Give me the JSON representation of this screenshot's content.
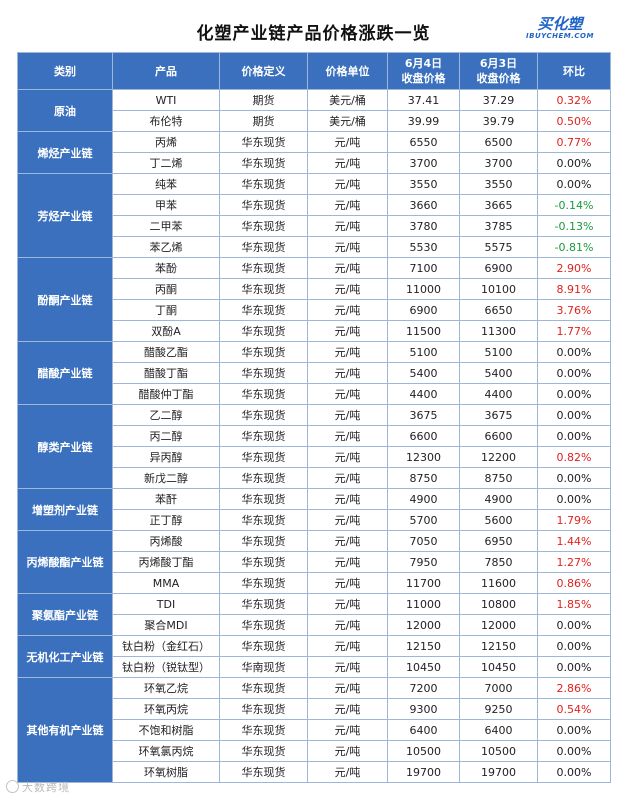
{
  "header": {
    "title": "化塑产业链产品价格涨跌一览",
    "logo_cn": "买化塑",
    "logo_en": "IBUYCHEM.COM"
  },
  "table": {
    "columns": [
      "类别",
      "产品",
      "价格定义",
      "价格单位",
      "6月4日\n收盘价格",
      "6月3日\n收盘价格",
      "环比"
    ],
    "groups": [
      {
        "category": "原油",
        "rows": [
          {
            "product": "WTI",
            "definition": "期货",
            "unit": "美元/桶",
            "d1": "37.41",
            "d2": "37.29",
            "change": "0.32%",
            "trend": "up"
          },
          {
            "product": "布伦特",
            "definition": "期货",
            "unit": "美元/桶",
            "d1": "39.99",
            "d2": "39.79",
            "change": "0.50%",
            "trend": "up"
          }
        ]
      },
      {
        "category": "烯烃产业链",
        "rows": [
          {
            "product": "丙烯",
            "definition": "华东现货",
            "unit": "元/吨",
            "d1": "6550",
            "d2": "6500",
            "change": "0.77%",
            "trend": "up"
          },
          {
            "product": "丁二烯",
            "definition": "华东现货",
            "unit": "元/吨",
            "d1": "3700",
            "d2": "3700",
            "change": "0.00%",
            "trend": "flat"
          }
        ]
      },
      {
        "category": "芳烃产业链",
        "rows": [
          {
            "product": "纯苯",
            "definition": "华东现货",
            "unit": "元/吨",
            "d1": "3550",
            "d2": "3550",
            "change": "0.00%",
            "trend": "flat"
          },
          {
            "product": "甲苯",
            "definition": "华东现货",
            "unit": "元/吨",
            "d1": "3660",
            "d2": "3665",
            "change": "-0.14%",
            "trend": "down"
          },
          {
            "product": "二甲苯",
            "definition": "华东现货",
            "unit": "元/吨",
            "d1": "3780",
            "d2": "3785",
            "change": "-0.13%",
            "trend": "down"
          },
          {
            "product": "苯乙烯",
            "definition": "华东现货",
            "unit": "元/吨",
            "d1": "5530",
            "d2": "5575",
            "change": "-0.81%",
            "trend": "down"
          }
        ]
      },
      {
        "category": "酚酮产业链",
        "rows": [
          {
            "product": "苯酚",
            "definition": "华东现货",
            "unit": "元/吨",
            "d1": "7100",
            "d2": "6900",
            "change": "2.90%",
            "trend": "up"
          },
          {
            "product": "丙酮",
            "definition": "华东现货",
            "unit": "元/吨",
            "d1": "11000",
            "d2": "10100",
            "change": "8.91%",
            "trend": "up"
          },
          {
            "product": "丁酮",
            "definition": "华东现货",
            "unit": "元/吨",
            "d1": "6900",
            "d2": "6650",
            "change": "3.76%",
            "trend": "up"
          },
          {
            "product": "双酚A",
            "definition": "华东现货",
            "unit": "元/吨",
            "d1": "11500",
            "d2": "11300",
            "change": "1.77%",
            "trend": "up"
          }
        ]
      },
      {
        "category": "醋酸产业链",
        "rows": [
          {
            "product": "醋酸乙酯",
            "definition": "华东现货",
            "unit": "元/吨",
            "d1": "5100",
            "d2": "5100",
            "change": "0.00%",
            "trend": "flat"
          },
          {
            "product": "醋酸丁酯",
            "definition": "华东现货",
            "unit": "元/吨",
            "d1": "5400",
            "d2": "5400",
            "change": "0.00%",
            "trend": "flat"
          },
          {
            "product": "醋酸仲丁酯",
            "definition": "华东现货",
            "unit": "元/吨",
            "d1": "4400",
            "d2": "4400",
            "change": "0.00%",
            "trend": "flat"
          }
        ]
      },
      {
        "category": "醇类产业链",
        "rows": [
          {
            "product": "乙二醇",
            "definition": "华东现货",
            "unit": "元/吨",
            "d1": "3675",
            "d2": "3675",
            "change": "0.00%",
            "trend": "flat"
          },
          {
            "product": "丙二醇",
            "definition": "华东现货",
            "unit": "元/吨",
            "d1": "6600",
            "d2": "6600",
            "change": "0.00%",
            "trend": "flat"
          },
          {
            "product": "异丙醇",
            "definition": "华东现货",
            "unit": "元/吨",
            "d1": "12300",
            "d2": "12200",
            "change": "0.82%",
            "trend": "up"
          },
          {
            "product": "新戊二醇",
            "definition": "华东现货",
            "unit": "元/吨",
            "d1": "8750",
            "d2": "8750",
            "change": "0.00%",
            "trend": "flat"
          }
        ]
      },
      {
        "category": "增塑剂产业链",
        "rows": [
          {
            "product": "苯酐",
            "definition": "华东现货",
            "unit": "元/吨",
            "d1": "4900",
            "d2": "4900",
            "change": "0.00%",
            "trend": "flat"
          },
          {
            "product": "正丁醇",
            "definition": "华东现货",
            "unit": "元/吨",
            "d1": "5700",
            "d2": "5600",
            "change": "1.79%",
            "trend": "up"
          }
        ]
      },
      {
        "category": "丙烯酸酯产业链",
        "rows": [
          {
            "product": "丙烯酸",
            "definition": "华东现货",
            "unit": "元/吨",
            "d1": "7050",
            "d2": "6950",
            "change": "1.44%",
            "trend": "up"
          },
          {
            "product": "丙烯酸丁酯",
            "definition": "华东现货",
            "unit": "元/吨",
            "d1": "7950",
            "d2": "7850",
            "change": "1.27%",
            "trend": "up"
          },
          {
            "product": "MMA",
            "definition": "华东现货",
            "unit": "元/吨",
            "d1": "11700",
            "d2": "11600",
            "change": "0.86%",
            "trend": "up"
          }
        ]
      },
      {
        "category": "聚氨酯产业链",
        "rows": [
          {
            "product": "TDI",
            "definition": "华东现货",
            "unit": "元/吨",
            "d1": "11000",
            "d2": "10800",
            "change": "1.85%",
            "trend": "up"
          },
          {
            "product": "聚合MDI",
            "definition": "华东现货",
            "unit": "元/吨",
            "d1": "12000",
            "d2": "12000",
            "change": "0.00%",
            "trend": "flat"
          }
        ]
      },
      {
        "category": "无机化工产业链",
        "rows": [
          {
            "product": "钛白粉（金红石）",
            "definition": "华东现货",
            "unit": "元/吨",
            "d1": "12150",
            "d2": "12150",
            "change": "0.00%",
            "trend": "flat"
          },
          {
            "product": "钛白粉（锐钛型）",
            "definition": "华南现货",
            "unit": "元/吨",
            "d1": "10450",
            "d2": "10450",
            "change": "0.00%",
            "trend": "flat"
          }
        ]
      },
      {
        "category": "其他有机产业链",
        "rows": [
          {
            "product": "环氧乙烷",
            "definition": "华东现货",
            "unit": "元/吨",
            "d1": "7200",
            "d2": "7000",
            "change": "2.86%",
            "trend": "up"
          },
          {
            "product": "环氧丙烷",
            "definition": "华东现货",
            "unit": "元/吨",
            "d1": "9300",
            "d2": "9250",
            "change": "0.54%",
            "trend": "up"
          },
          {
            "product": "不饱和树脂",
            "definition": "华东现货",
            "unit": "元/吨",
            "d1": "6400",
            "d2": "6400",
            "change": "0.00%",
            "trend": "flat"
          },
          {
            "product": "环氧氯丙烷",
            "definition": "华东现货",
            "unit": "元/吨",
            "d1": "10500",
            "d2": "10500",
            "change": "0.00%",
            "trend": "flat"
          },
          {
            "product": "环氧树脂",
            "definition": "华东现货",
            "unit": "元/吨",
            "d1": "19700",
            "d2": "19700",
            "change": "0.00%",
            "trend": "flat"
          }
        ]
      }
    ]
  },
  "colors": {
    "header_blue": "#3a70be",
    "up_red": "#e0221f",
    "down_green": "#1a9a3c",
    "border": "#9db7d9"
  },
  "watermark": {
    "text": "大数跨境",
    "icon": "brand-circle-icon"
  }
}
